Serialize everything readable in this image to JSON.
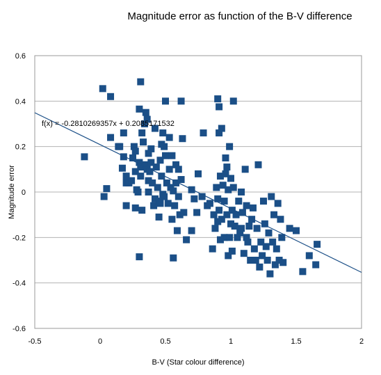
{
  "chart_data": {
    "type": "scatter",
    "title": "Magnitude error as function of the B-V difference",
    "xlabel": "B-V (Star colour difference)",
    "ylabel": "Magnitude error",
    "xlim": [
      -0.5,
      2
    ],
    "ylim": [
      -0.6,
      0.6
    ],
    "x_ticks": [
      "-0.5",
      "0",
      "0.5",
      "1",
      "1.5",
      "2"
    ],
    "y_ticks": [
      "-0.6",
      "-0.4",
      "-0.2",
      "0",
      "0.2",
      "0.4",
      "0.6"
    ],
    "grid": "horizontal",
    "legend": "none",
    "marker": "square",
    "series_color": "#1b4f87",
    "trendline": {
      "equation_text": "f(x) = -0.2810269357x + 0.2085171532",
      "slope": -0.2810269357,
      "intercept": 0.2085171532,
      "color": "#1b4f87"
    },
    "points": [
      [
        -0.12,
        0.155
      ],
      [
        0.02,
        0.455
      ],
      [
        0.08,
        0.42
      ],
      [
        0.31,
        0.485
      ],
      [
        0.5,
        0.4
      ],
      [
        0.62,
        0.4
      ],
      [
        0.9,
        0.41
      ],
      [
        0.91,
        0.375
      ],
      [
        1.02,
        0.4
      ],
      [
        0.03,
        -0.02
      ],
      [
        0.05,
        0.015
      ],
      [
        0.08,
        0.24
      ],
      [
        0.14,
        0.2
      ],
      [
        0.15,
        0.2
      ],
      [
        0.17,
        0.105
      ],
      [
        0.18,
        0.155
      ],
      [
        0.18,
        0.26
      ],
      [
        0.2,
        0.07
      ],
      [
        0.2,
        0.04
      ],
      [
        0.2,
        -0.06
      ],
      [
        0.22,
        0.04
      ],
      [
        0.24,
        0.05
      ],
      [
        0.25,
        0.15
      ],
      [
        0.26,
        0.2
      ],
      [
        0.27,
        0.18
      ],
      [
        0.27,
        0.09
      ],
      [
        0.27,
        -0.07
      ],
      [
        0.28,
        0.01
      ],
      [
        0.29,
        0.0
      ],
      [
        0.3,
        0.365
      ],
      [
        0.3,
        0.13
      ],
      [
        0.31,
        0.11
      ],
      [
        0.31,
        0.07
      ],
      [
        0.32,
        -0.08
      ],
      [
        0.32,
        0.26
      ],
      [
        0.33,
        0.22
      ],
      [
        0.34,
        0.3
      ],
      [
        0.35,
        0.35
      ],
      [
        0.35,
        0.12
      ],
      [
        0.36,
        0.32
      ],
      [
        0.36,
        0.1
      ],
      [
        0.37,
        0.05
      ],
      [
        0.37,
        0.0
      ],
      [
        0.37,
        0.17
      ],
      [
        0.38,
        0.09
      ],
      [
        0.39,
        0.13
      ],
      [
        0.39,
        0.19
      ],
      [
        0.4,
        0.04
      ],
      [
        0.41,
        -0.06
      ],
      [
        0.42,
        0.28
      ],
      [
        0.42,
        -0.03
      ],
      [
        0.43,
        0.11
      ],
      [
        0.44,
        0.02
      ],
      [
        0.45,
        -0.04
      ],
      [
        0.45,
        -0.11
      ],
      [
        0.46,
        0.14
      ],
      [
        0.46,
        -0.05
      ],
      [
        0.47,
        0.07
      ],
      [
        0.47,
        0.21
      ],
      [
        0.48,
        -0.01
      ],
      [
        0.48,
        0.26
      ],
      [
        0.49,
        0.2
      ],
      [
        0.49,
        -0.02
      ],
      [
        0.5,
        0.16
      ],
      [
        0.51,
        0.04
      ],
      [
        0.52,
        -0.05
      ],
      [
        0.53,
        0.24
      ],
      [
        0.53,
        0.1
      ],
      [
        0.54,
        0.02
      ],
      [
        0.55,
        -0.12
      ],
      [
        0.55,
        0.16
      ],
      [
        0.56,
        0.005
      ],
      [
        0.56,
        -0.29
      ],
      [
        0.57,
        -0.06
      ],
      [
        0.58,
        0.12
      ],
      [
        0.58,
        0.04
      ],
      [
        0.59,
        -0.17
      ],
      [
        0.6,
        0.1
      ],
      [
        0.6,
        -0.02
      ],
      [
        0.61,
        -0.1
      ],
      [
        0.62,
        0.055
      ],
      [
        0.63,
        0.235
      ],
      [
        0.64,
        -0.09
      ],
      [
        0.3,
        -0.285
      ],
      [
        0.7,
        0.01
      ],
      [
        0.72,
        -0.03
      ],
      [
        0.74,
        -0.09
      ],
      [
        0.75,
        0.08
      ],
      [
        0.78,
        -0.02
      ],
      [
        0.79,
        0.26
      ],
      [
        0.82,
        -0.06
      ],
      [
        0.84,
        -0.05
      ],
      [
        0.87,
        -0.1
      ],
      [
        0.88,
        -0.16
      ],
      [
        0.89,
        0.02
      ],
      [
        0.9,
        -0.03
      ],
      [
        0.91,
        -0.08
      ],
      [
        0.91,
        0.26
      ],
      [
        0.92,
        0.07
      ],
      [
        0.93,
        0.28
      ],
      [
        0.93,
        -0.12
      ],
      [
        0.94,
        0.03
      ],
      [
        0.95,
        -0.2
      ],
      [
        0.95,
        -0.04
      ],
      [
        0.96,
        0.15
      ],
      [
        0.96,
        0.08
      ],
      [
        0.97,
        -0.1
      ],
      [
        0.97,
        0.11
      ],
      [
        0.98,
        -0.28
      ],
      [
        0.98,
        0.01
      ],
      [
        0.99,
        -0.2
      ],
      [
        0.99,
        0.2
      ],
      [
        1.0,
        -0.14
      ],
      [
        1.0,
        0.06
      ],
      [
        1.01,
        -0.26
      ],
      [
        1.01,
        -0.08
      ],
      [
        1.02,
        0.02
      ],
      [
        1.03,
        -0.15
      ],
      [
        1.04,
        -0.1
      ],
      [
        1.05,
        -0.2
      ],
      [
        1.06,
        -0.04
      ],
      [
        1.07,
        -0.18
      ],
      [
        1.08,
        0.0
      ],
      [
        1.09,
        -0.09
      ],
      [
        1.1,
        -0.27
      ],
      [
        1.11,
        0.1
      ],
      [
        1.12,
        -0.2
      ],
      [
        1.13,
        -0.22
      ],
      [
        1.14,
        -0.15
      ],
      [
        1.15,
        -0.3
      ],
      [
        1.16,
        -0.12
      ],
      [
        1.17,
        -0.07
      ],
      [
        1.18,
        -0.25
      ],
      [
        1.19,
        -0.3
      ],
      [
        1.2,
        -0.16
      ],
      [
        1.21,
        0.12
      ],
      [
        1.22,
        -0.33
      ],
      [
        1.23,
        -0.22
      ],
      [
        1.24,
        -0.28
      ],
      [
        1.25,
        -0.04
      ],
      [
        1.26,
        -0.14
      ],
      [
        1.27,
        -0.24
      ],
      [
        1.28,
        -0.3
      ],
      [
        1.29,
        -0.18
      ],
      [
        1.3,
        -0.36
      ],
      [
        1.31,
        -0.02
      ],
      [
        1.32,
        -0.22
      ],
      [
        1.33,
        -0.1
      ],
      [
        1.34,
        -0.32
      ],
      [
        1.35,
        -0.25
      ],
      [
        1.36,
        -0.05
      ],
      [
        1.37,
        -0.3
      ],
      [
        1.38,
        -0.12
      ],
      [
        1.39,
        -0.2
      ],
      [
        1.4,
        -0.31
      ],
      [
        1.45,
        -0.16
      ],
      [
        1.5,
        -0.17
      ],
      [
        1.55,
        -0.35
      ],
      [
        1.6,
        -0.28
      ],
      [
        1.65,
        -0.32
      ],
      [
        1.66,
        -0.23
      ],
      [
        1.08,
        -0.16
      ],
      [
        1.12,
        -0.06
      ],
      [
        0.66,
        -0.21
      ],
      [
        0.7,
        -0.17
      ],
      [
        0.86,
        -0.25
      ],
      [
        0.9,
        -0.13
      ],
      [
        0.92,
        -0.21
      ]
    ]
  }
}
